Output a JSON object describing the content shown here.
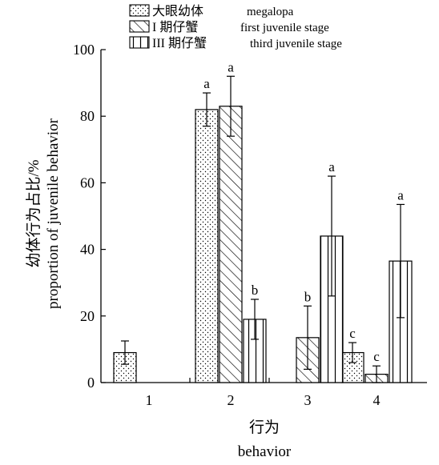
{
  "chart_data": {
    "type": "bar",
    "categories": [
      "1",
      "2",
      "3",
      "4"
    ],
    "xlabel_zh": "行为",
    "xlabel_en": "behavior",
    "ylabel_zh": "幼体行为占比/%",
    "ylabel_en": "proportion of juvenile behavior",
    "ylim": [
      0,
      100
    ],
    "yticks": [
      "0",
      "20",
      "40",
      "60",
      "80",
      "100"
    ],
    "grid": false,
    "legend_position": "top-left",
    "series": [
      {
        "name": "大眼幼体",
        "name_en": "megalopa",
        "pattern": "dots",
        "values": [
          9,
          82,
          null,
          9
        ],
        "errors": [
          3.5,
          5,
          null,
          3
        ],
        "letters": [
          "",
          "a",
          "",
          "c"
        ]
      },
      {
        "name": "I 期仔蟹",
        "name_en": "first juvenile stage",
        "pattern": "diagonal",
        "values": [
          null,
          83,
          13.5,
          2.5
        ],
        "errors": [
          null,
          9,
          9.5,
          2.5
        ],
        "letters": [
          "",
          "a",
          "b",
          "c"
        ]
      },
      {
        "name": "III 期仔蟹",
        "name_en": "third juvenile stage",
        "pattern": "vertical",
        "values": [
          null,
          19,
          44,
          36.5
        ],
        "errors": [
          null,
          6,
          18,
          17
        ],
        "letters": [
          "",
          "b",
          "a",
          "a"
        ]
      }
    ]
  }
}
